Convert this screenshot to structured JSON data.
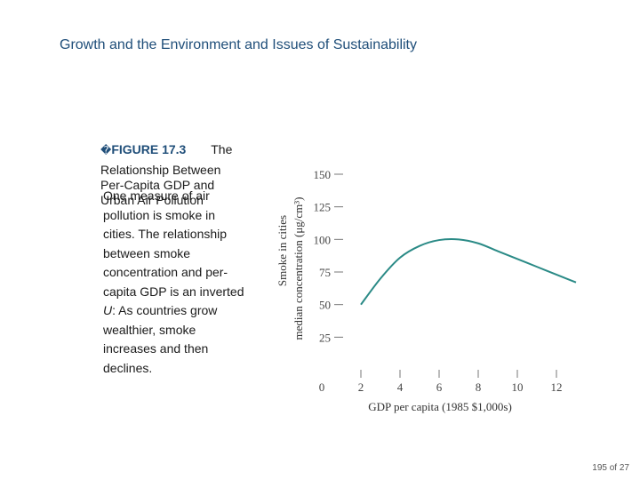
{
  "page": {
    "title": "Growth and the Environment and Issues of Sustainability",
    "page_number": "195 of 27"
  },
  "caption": {
    "marker": "�",
    "figure_label": "FIGURE 17.3",
    "figure_title_lines": [
      "The",
      "Relationship Between",
      "Per-Capita GDP and",
      "Urban Air Pollution"
    ],
    "body_lines": [
      "One measure of air",
      "pollution is smoke in",
      "cities. The relationship",
      "between smoke",
      "concentration and per-",
      "capita GDP is an inverted"
    ],
    "italic_u": "U",
    "body_rest": ": As countries grow",
    "tail_lines": [
      "wealthier, smoke",
      "increases and then",
      "declines."
    ]
  },
  "chart_data": {
    "type": "line",
    "xlabel": "GDP per capita (1985 $1,000s)",
    "ylabel_line1": "Smoke in cities",
    "ylabel_line2": "median concentration (μg/cm³)",
    "xlim": [
      0,
      13
    ],
    "ylim": [
      0,
      150
    ],
    "x_ticks": [
      0,
      2,
      4,
      6,
      8,
      10,
      12
    ],
    "y_ticks": [
      25,
      50,
      75,
      100,
      125,
      150
    ],
    "x": [
      2,
      3,
      4,
      5,
      6,
      7,
      8,
      9,
      10,
      11,
      12,
      13
    ],
    "y": [
      50,
      70,
      86,
      95,
      99.5,
      100,
      97,
      91,
      85,
      79,
      73,
      67
    ],
    "line_color": "#2a8a86"
  }
}
